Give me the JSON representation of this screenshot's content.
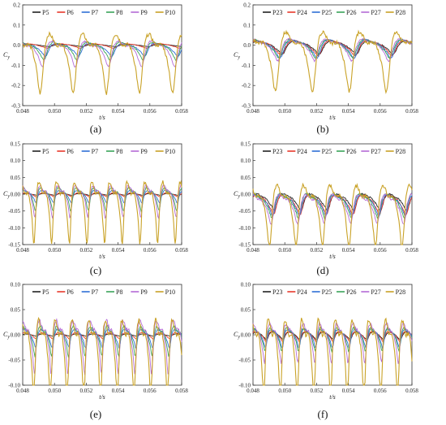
{
  "chart_data": [
    {
      "id": "a",
      "type": "line",
      "panel_label": "(a)",
      "xlabel": "t/s",
      "ylabel": "Cy",
      "ylabel_main": "C",
      "ylabel_sub": "y",
      "xlim": [
        0.048,
        0.058
      ],
      "ylim": [
        -0.3,
        0.2
      ],
      "xticks": [
        "0.048",
        "0.050",
        "0.052",
        "0.054",
        "0.056",
        "0.058"
      ],
      "yticks": [
        "-0.3",
        "-0.2",
        "-0.1",
        "0.0",
        "0.1",
        "0.2"
      ],
      "legend": "top",
      "series": [
        {
          "name": "P5",
          "color": "#222222",
          "amp": 0.008,
          "freq": 480,
          "phase": 0.2,
          "sharp": 0.3,
          "seed": 1,
          "offset": 0
        },
        {
          "name": "P6",
          "color": "#e8392b",
          "amp": 0.015,
          "freq": 480,
          "phase": 0.6,
          "sharp": 0.4,
          "seed": 2,
          "offset": 0
        },
        {
          "name": "P7",
          "color": "#2f6fd6",
          "amp": 0.035,
          "freq": 480,
          "phase": 1.0,
          "sharp": 0.6,
          "seed": 3,
          "offset": -0.01
        },
        {
          "name": "P8",
          "color": "#3aa35a",
          "amp": 0.045,
          "freq": 480,
          "phase": 1.3,
          "sharp": 0.7,
          "seed": 4,
          "offset": -0.01
        },
        {
          "name": "P9",
          "color": "#b46bd6",
          "amp": 0.06,
          "freq": 480,
          "phase": 1.6,
          "sharp": 0.8,
          "seed": 5,
          "offset": -0.015
        },
        {
          "name": "P10",
          "color": "#c9a227",
          "amp": 0.12,
          "freq": 480,
          "phase": 2.0,
          "sharp": 1.0,
          "seed": 6,
          "offset": -0.02
        }
      ]
    },
    {
      "id": "b",
      "type": "line",
      "panel_label": "(b)",
      "xlabel": "t/s",
      "ylabel": "Cy",
      "ylabel_main": "C",
      "ylabel_sub": "y",
      "xlim": [
        0.048,
        0.058
      ],
      "ylim": [
        -0.3,
        0.2
      ],
      "xticks": [
        "0.048",
        "0.050",
        "0.052",
        "0.054",
        "0.056",
        "0.058"
      ],
      "yticks": [
        "-0.3",
        "-0.2",
        "-0.1",
        "0.0",
        "0.1",
        "0.2"
      ],
      "legend": "top",
      "series": [
        {
          "name": "P23",
          "color": "#222222",
          "amp": 0.04,
          "freq": 430,
          "phase": 0.3,
          "sharp": 0.5,
          "seed": 11,
          "offset": 0
        },
        {
          "name": "P24",
          "color": "#e8392b",
          "amp": 0.045,
          "freq": 430,
          "phase": 0.5,
          "sharp": 0.5,
          "seed": 12,
          "offset": 0
        },
        {
          "name": "P25",
          "color": "#2f6fd6",
          "amp": 0.05,
          "freq": 430,
          "phase": 0.7,
          "sharp": 0.6,
          "seed": 13,
          "offset": 0
        },
        {
          "name": "P26",
          "color": "#3aa35a",
          "amp": 0.05,
          "freq": 430,
          "phase": 0.9,
          "sharp": 0.6,
          "seed": 14,
          "offset": 0
        },
        {
          "name": "P27",
          "color": "#b46bd6",
          "amp": 0.055,
          "freq": 430,
          "phase": 1.1,
          "sharp": 0.7,
          "seed": 15,
          "offset": 0
        },
        {
          "name": "P28",
          "color": "#c9a227",
          "amp": 0.12,
          "freq": 430,
          "phase": 1.5,
          "sharp": 1.0,
          "seed": 16,
          "offset": -0.01
        }
      ]
    },
    {
      "id": "c",
      "type": "line",
      "panel_label": "(c)",
      "xlabel": "t/s",
      "ylabel": "Cy",
      "ylabel_main": "C",
      "ylabel_sub": "y",
      "xlim": [
        0.048,
        0.058
      ],
      "ylim": [
        -0.15,
        0.15
      ],
      "xticks": [
        "0.048",
        "0.050",
        "0.052",
        "0.054",
        "0.056",
        "0.058"
      ],
      "yticks": [
        "-0.15",
        "-0.10",
        "-0.05",
        "0.00",
        "0.05",
        "0.10",
        "0.15"
      ],
      "legend": "top",
      "series": [
        {
          "name": "P5",
          "color": "#222222",
          "amp": 0.004,
          "freq": 900,
          "phase": 0.1,
          "sharp": 0.3,
          "seed": 21,
          "offset": 0
        },
        {
          "name": "P6",
          "color": "#e8392b",
          "amp": 0.008,
          "freq": 900,
          "phase": 0.3,
          "sharp": 0.4,
          "seed": 22,
          "offset": 0
        },
        {
          "name": "P7",
          "color": "#2f6fd6",
          "amp": 0.02,
          "freq": 900,
          "phase": 0.6,
          "sharp": 0.6,
          "seed": 23,
          "offset": 0
        },
        {
          "name": "P8",
          "color": "#3aa35a",
          "amp": 0.035,
          "freq": 900,
          "phase": 0.8,
          "sharp": 0.7,
          "seed": 24,
          "offset": 0
        },
        {
          "name": "P9",
          "color": "#b46bd6",
          "amp": 0.045,
          "freq": 900,
          "phase": 1.0,
          "sharp": 0.8,
          "seed": 25,
          "offset": 0
        },
        {
          "name": "P10",
          "color": "#c9a227",
          "amp": 0.075,
          "freq": 900,
          "phase": 1.3,
          "sharp": 1.0,
          "seed": 26,
          "offset": -0.01
        }
      ]
    },
    {
      "id": "d",
      "type": "line",
      "panel_label": "(d)",
      "xlabel": "t/s",
      "ylabel": "Cy",
      "ylabel_main": "C",
      "ylabel_sub": "y",
      "xlim": [
        0.048,
        0.058
      ],
      "ylim": [
        -0.15,
        0.15
      ],
      "xticks": [
        "0.048",
        "0.050",
        "0.052",
        "0.054",
        "0.056",
        "0.058"
      ],
      "yticks": [
        "-0.15",
        "-0.10",
        "-0.05",
        "0.00",
        "0.05",
        "0.10",
        "0.15"
      ],
      "legend": "top",
      "series": [
        {
          "name": "P23",
          "color": "#222222",
          "amp": 0.03,
          "freq": 600,
          "phase": 0.2,
          "sharp": 0.5,
          "seed": 31,
          "offset": -0.015
        },
        {
          "name": "P24",
          "color": "#e8392b",
          "amp": 0.035,
          "freq": 600,
          "phase": 0.4,
          "sharp": 0.5,
          "seed": 32,
          "offset": -0.02
        },
        {
          "name": "P25",
          "color": "#2f6fd6",
          "amp": 0.035,
          "freq": 600,
          "phase": 0.6,
          "sharp": 0.6,
          "seed": 33,
          "offset": -0.02
        },
        {
          "name": "P26",
          "color": "#3aa35a",
          "amp": 0.04,
          "freq": 600,
          "phase": 0.8,
          "sharp": 0.6,
          "seed": 34,
          "offset": -0.02
        },
        {
          "name": "P27",
          "color": "#b46bd6",
          "amp": 0.045,
          "freq": 600,
          "phase": 1.0,
          "sharp": 0.7,
          "seed": 35,
          "offset": -0.025
        },
        {
          "name": "P28",
          "color": "#c9a227",
          "amp": 0.075,
          "freq": 600,
          "phase": 1.4,
          "sharp": 1.0,
          "seed": 36,
          "offset": -0.02
        }
      ]
    },
    {
      "id": "e",
      "type": "line",
      "panel_label": "(e)",
      "xlabel": "t/s",
      "ylabel": "Cy",
      "ylabel_main": "C",
      "ylabel_sub": "y",
      "xlim": [
        0.048,
        0.058
      ],
      "ylim": [
        -0.1,
        0.1
      ],
      "xticks": [
        "0.048",
        "0.050",
        "0.052",
        "0.054",
        "0.056",
        "0.058"
      ],
      "yticks": [
        "-0.10",
        "-0.05",
        "0.00",
        "0.05",
        "0.10"
      ],
      "legend": "top",
      "series": [
        {
          "name": "P5",
          "color": "#222222",
          "amp": 0.003,
          "freq": 950,
          "phase": 0.1,
          "sharp": 0.3,
          "seed": 41,
          "offset": 0
        },
        {
          "name": "P6",
          "color": "#e8392b",
          "amp": 0.008,
          "freq": 950,
          "phase": 0.3,
          "sharp": 0.4,
          "seed": 42,
          "offset": 0
        },
        {
          "name": "P7",
          "color": "#2f6fd6",
          "amp": 0.02,
          "freq": 950,
          "phase": 0.5,
          "sharp": 0.6,
          "seed": 43,
          "offset": 0
        },
        {
          "name": "P8",
          "color": "#3aa35a",
          "amp": 0.03,
          "freq": 950,
          "phase": 0.7,
          "sharp": 0.7,
          "seed": 44,
          "offset": 0
        },
        {
          "name": "P9",
          "color": "#b46bd6",
          "amp": 0.05,
          "freq": 950,
          "phase": 0.9,
          "sharp": 0.8,
          "seed": 45,
          "offset": 0
        },
        {
          "name": "P10",
          "color": "#c9a227",
          "amp": 0.065,
          "freq": 950,
          "phase": 1.2,
          "sharp": 1.0,
          "seed": 46,
          "offset": -0.01
        }
      ]
    },
    {
      "id": "f",
      "type": "line",
      "panel_label": "(f)",
      "xlabel": "t/s",
      "ylabel": "Cy",
      "ylabel_main": "C",
      "ylabel_sub": "y",
      "xlim": [
        0.048,
        0.058
      ],
      "ylim": [
        -0.1,
        0.1
      ],
      "xticks": [
        "0.048",
        "0.050",
        "0.052",
        "0.054",
        "0.056",
        "0.058"
      ],
      "yticks": [
        "-0.10",
        "-0.05",
        "0.00",
        "0.05",
        "0.10"
      ],
      "legend": "top",
      "series": [
        {
          "name": "P23",
          "color": "#222222",
          "amp": 0.01,
          "freq": 950,
          "phase": 0.2,
          "sharp": 0.4,
          "seed": 51,
          "offset": 0
        },
        {
          "name": "P24",
          "color": "#e8392b",
          "amp": 0.012,
          "freq": 950,
          "phase": 0.4,
          "sharp": 0.5,
          "seed": 52,
          "offset": 0
        },
        {
          "name": "P25",
          "color": "#2f6fd6",
          "amp": 0.02,
          "freq": 950,
          "phase": 0.6,
          "sharp": 0.6,
          "seed": 53,
          "offset": 0
        },
        {
          "name": "P26",
          "color": "#3aa35a",
          "amp": 0.025,
          "freq": 950,
          "phase": 0.8,
          "sharp": 0.6,
          "seed": 54,
          "offset": 0
        },
        {
          "name": "P27",
          "color": "#b46bd6",
          "amp": 0.04,
          "freq": 950,
          "phase": 1.0,
          "sharp": 0.7,
          "seed": 55,
          "offset": 0
        },
        {
          "name": "P28",
          "color": "#c9a227",
          "amp": 0.065,
          "freq": 950,
          "phase": 1.3,
          "sharp": 1.0,
          "seed": 56,
          "offset": -0.01
        }
      ]
    }
  ]
}
